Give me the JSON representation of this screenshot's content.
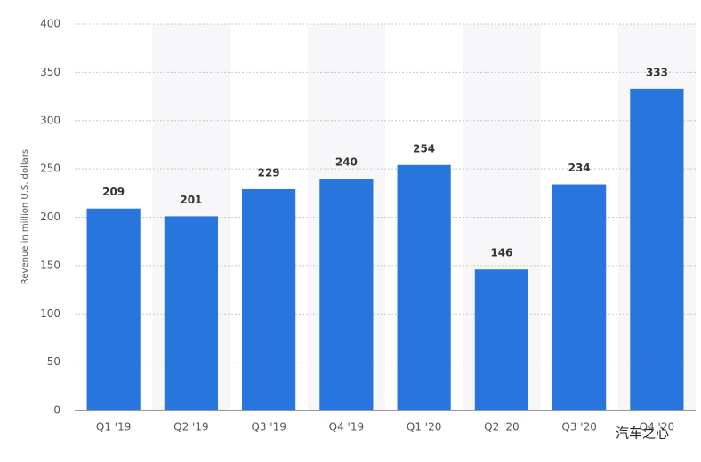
{
  "chart_data": {
    "type": "bar",
    "y_label": "Revenue in million U.S. dollars",
    "categories": [
      "Q1 '19",
      "Q2 '19",
      "Q3 '19",
      "Q4 '19",
      "Q1 '20",
      "Q2 '20",
      "Q3 '20",
      "Q4 '20"
    ],
    "values": [
      209,
      201,
      229,
      240,
      254,
      146,
      234,
      333
    ],
    "color": "#2876dd",
    "ylim": [
      0,
      400
    ],
    "yticks": [
      0,
      50,
      100,
      150,
      200,
      250,
      300,
      350,
      400
    ],
    "grid": true,
    "annotation": "汽车之心"
  }
}
